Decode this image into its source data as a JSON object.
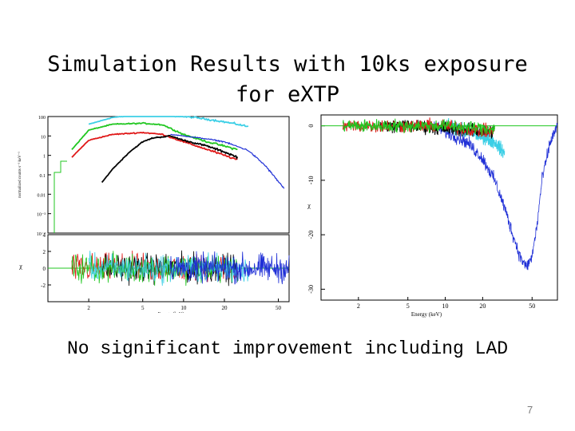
{
  "title_line1": "Simulation Results with 10ks exposure",
  "title_line2": "for eXTP",
  "caption": "No significant improvement including LAD",
  "page_number": "7",
  "chart_data": [
    {
      "type": "line",
      "panel": "left-top",
      "ylabel": "normalized counts s⁻¹ keV⁻¹",
      "yscale": "log",
      "xscale": "log",
      "xlim": [
        1,
        60
      ],
      "ylim": [
        0.0001,
        100
      ],
      "yticks": [
        "100",
        "10",
        "1",
        "0.1",
        "0.01",
        "10⁻³",
        "10⁻⁴"
      ],
      "series": [
        {
          "color": "#3ccfe6",
          "x": [
            2,
            3,
            5,
            8,
            12,
            18,
            25,
            30
          ],
          "values": [
            40,
            90,
            120,
            110,
            90,
            60,
            40,
            30
          ]
        },
        {
          "color": "#21c721",
          "x": [
            1.5,
            2,
            3,
            5,
            7,
            10,
            15,
            20,
            25
          ],
          "values": [
            2,
            20,
            40,
            45,
            38,
            12,
            5,
            3,
            2
          ]
        },
        {
          "color": "#e01818",
          "x": [
            1.5,
            2,
            3,
            5,
            7,
            10,
            15,
            20,
            25
          ],
          "values": [
            0.8,
            6,
            12,
            15,
            12,
            5,
            2,
            1,
            0.6
          ]
        },
        {
          "color": "#000000",
          "x": [
            2.5,
            3,
            4,
            5,
            6,
            8,
            10,
            15,
            20,
            25
          ],
          "values": [
            0.04,
            0.2,
            1.5,
            5,
            8,
            10,
            6,
            3,
            1.5,
            0.8
          ]
        },
        {
          "color": "#1f2fd6",
          "x": [
            8,
            10,
            15,
            20,
            30,
            40,
            55
          ],
          "values": [
            12,
            10,
            7,
            5,
            1.8,
            0.3,
            0.02
          ]
        }
      ]
    },
    {
      "type": "line",
      "panel": "left-bottom",
      "ylabel": "χ",
      "xlabel": "Energy (keV)",
      "xscale": "log",
      "xlim": [
        1,
        60
      ],
      "ylim": [
        -4,
        4
      ],
      "yticks": [
        "4",
        "2",
        "0",
        "-2"
      ],
      "xticks": [
        "2",
        "5",
        "10",
        "20",
        "50"
      ],
      "series": [
        {
          "color": "#e01818",
          "x_range": [
            1.5,
            25
          ],
          "noise": 2.5
        },
        {
          "color": "#000000",
          "x_range": [
            2.5,
            25
          ],
          "noise": 2.5
        },
        {
          "color": "#21c721",
          "x_range": [
            1.5,
            25
          ],
          "noise": 2.5
        },
        {
          "color": "#3ccfe6",
          "x_range": [
            2,
            30
          ],
          "noise": 2.5
        },
        {
          "color": "#1f2fd6",
          "x_range": [
            8,
            60
          ],
          "noise": 2.5
        }
      ]
    },
    {
      "type": "line",
      "panel": "right",
      "ylabel": "χ",
      "xlabel": "Energy (keV)",
      "xscale": "log",
      "xlim": [
        1,
        80
      ],
      "ylim": [
        -32,
        2
      ],
      "yticks": [
        "0",
        "-10",
        "-20",
        "-30"
      ],
      "xticks": [
        "2",
        "5",
        "10",
        "20",
        "50"
      ],
      "series": [
        {
          "color": "#1f2fd6",
          "x": [
            8,
            15,
            20,
            25,
            30,
            35,
            40,
            45,
            50,
            55,
            60,
            70,
            80
          ],
          "values": [
            0,
            -3,
            -6,
            -10,
            -15,
            -20,
            -24,
            -26,
            -24,
            -18,
            -10,
            -3,
            0
          ]
        },
        {
          "color": "#3ccfe6",
          "x": [
            10,
            15,
            20,
            25,
            30
          ],
          "values": [
            0,
            -1,
            -2,
            -3,
            -5
          ]
        },
        {
          "color": "#000000",
          "x": [
            3,
            5,
            10,
            20,
            25
          ],
          "values": [
            0,
            0,
            -0.5,
            -1,
            -1
          ]
        },
        {
          "color": "#e01818",
          "x": [
            1.5,
            3,
            5,
            10,
            20,
            25
          ],
          "values": [
            0,
            0,
            0,
            0,
            -1,
            -1
          ]
        },
        {
          "color": "#21c721",
          "x": [
            1.5,
            3,
            5,
            10,
            20,
            25
          ],
          "values": [
            0,
            0,
            0,
            0,
            -0.5,
            -0.5
          ]
        }
      ]
    }
  ]
}
